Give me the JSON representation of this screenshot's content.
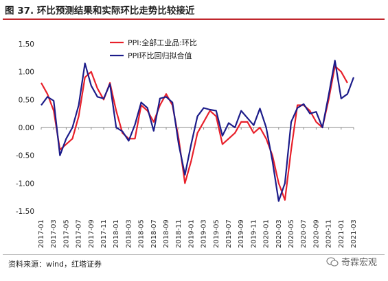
{
  "title": "图 37. 环比预测结果和实际环比走势比较接近",
  "source": "资料来源：wind，红塔证券",
  "watermark": "奇霖宏观",
  "colors": {
    "title_rule": "#c0272d",
    "series_red": "#e8202a",
    "series_blue": "#1c1c8a"
  },
  "chart_data": {
    "type": "line",
    "title": "",
    "xlabel": "",
    "ylabel": "",
    "ylim": [
      -1.5,
      1.5
    ],
    "yticks": [
      "1.50",
      "1.00",
      "0.50",
      "0.00",
      "-0.50",
      "-1.00",
      "-1.50"
    ],
    "grid": false,
    "legend_position": "top-center",
    "x": [
      "2017-01",
      "2017-02",
      "2017-03",
      "2017-04",
      "2017-05",
      "2017-06",
      "2017-07",
      "2017-08",
      "2017-09",
      "2017-10",
      "2017-11",
      "2017-12",
      "2018-01",
      "2018-02",
      "2018-03",
      "2018-04",
      "2018-05",
      "2018-06",
      "2018-07",
      "2018-08",
      "2018-09",
      "2018-10",
      "2018-11",
      "2018-12",
      "2019-01",
      "2019-02",
      "2019-03",
      "2019-04",
      "2019-05",
      "2019-06",
      "2019-07",
      "2019-08",
      "2019-09",
      "2019-10",
      "2019-11",
      "2019-12",
      "2020-01",
      "2020-02",
      "2020-03",
      "2020-04",
      "2020-05",
      "2020-06",
      "2020-07",
      "2020-08",
      "2020-09",
      "2020-10",
      "2020-11",
      "2020-12",
      "2021-01",
      "2021-02",
      "2021-03"
    ],
    "xticklabels": [
      "2017-01",
      "2017-03",
      "2017-05",
      "2017-07",
      "2017-09",
      "2017-11",
      "2018-01",
      "2018-03",
      "2018-05",
      "2018-07",
      "2018-09",
      "2018-11",
      "2019-01",
      "2019-03",
      "2019-05",
      "2019-07",
      "2019-09",
      "2019-11",
      "2020-01",
      "2020-03",
      "2020-05",
      "2020-07",
      "2020-09",
      "2020-11",
      "2021-01",
      "2021-03"
    ],
    "series": [
      {
        "name": "PPI:全部工业品:环比",
        "color": "#e8202a",
        "values": [
          0.8,
          0.6,
          0.3,
          -0.4,
          -0.3,
          -0.2,
          0.2,
          0.9,
          1.0,
          0.7,
          0.5,
          0.8,
          0.3,
          -0.1,
          -0.2,
          -0.2,
          0.4,
          0.3,
          0.1,
          0.4,
          0.6,
          0.4,
          -0.2,
          -1.0,
          -0.6,
          -0.1,
          0.1,
          0.3,
          0.2,
          -0.3,
          -0.2,
          -0.1,
          0.1,
          0.1,
          -0.1,
          0.0,
          -0.2,
          -0.5,
          -1.0,
          -1.3,
          -0.4,
          0.4,
          0.4,
          0.3,
          0.1,
          0.0,
          0.5,
          1.1,
          1.0,
          0.8,
          null
        ]
      },
      {
        "name": "PPI环比回归拟合值",
        "color": "#1c1c8a",
        "values": [
          0.4,
          0.55,
          0.48,
          -0.5,
          -0.2,
          0.0,
          0.4,
          1.15,
          0.75,
          0.55,
          0.52,
          0.78,
          0.0,
          -0.07,
          -0.24,
          0.05,
          0.45,
          0.35,
          -0.06,
          0.52,
          0.55,
          0.45,
          -0.3,
          -0.85,
          -0.3,
          0.2,
          0.35,
          0.32,
          0.3,
          -0.15,
          0.08,
          0.0,
          0.3,
          0.17,
          0.04,
          0.34,
          0.0,
          -0.6,
          -1.32,
          -1.0,
          0.1,
          0.35,
          0.42,
          0.25,
          0.28,
          0.0,
          0.58,
          1.2,
          0.52,
          0.6,
          0.9
        ]
      }
    ]
  }
}
